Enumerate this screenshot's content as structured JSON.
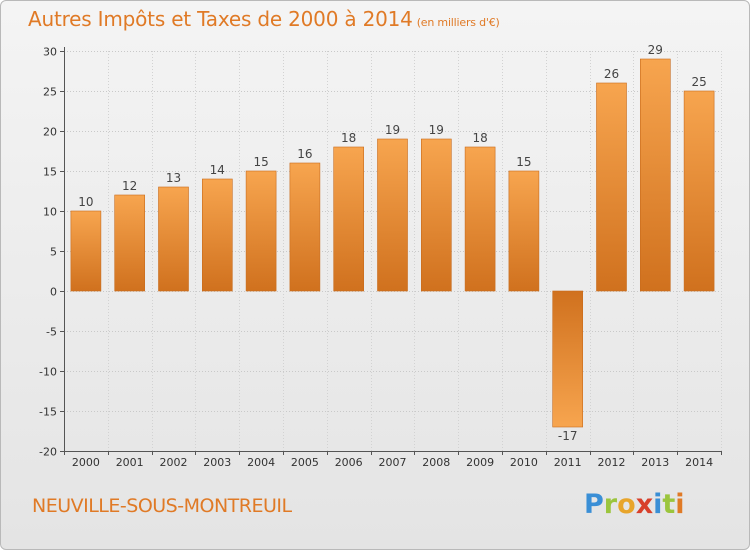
{
  "header": {
    "title": "Autres Impôts et Taxes de 2000 à 2014",
    "unit": "(en milliers d'€)"
  },
  "footer": {
    "town": "NEUVILLE-SOUS-MONTREUIL",
    "logo": [
      "P",
      "r",
      "o",
      "x",
      "i",
      "t",
      "i"
    ]
  },
  "colors": {
    "bar_light": "#f7a24d",
    "bar_dark": "#d27420",
    "title": "#e07a26"
  },
  "chart_data": {
    "type": "bar",
    "title": "Autres Impôts et Taxes de 2000 à 2014",
    "ylabel": "",
    "xlabel": "",
    "categories": [
      "2000",
      "2001",
      "2002",
      "2003",
      "2004",
      "2005",
      "2006",
      "2007",
      "2008",
      "2009",
      "2010",
      "2011",
      "2012",
      "2013",
      "2014"
    ],
    "values": [
      10,
      12,
      13,
      14,
      15,
      16,
      18,
      19,
      19,
      18,
      15,
      -17,
      26,
      29,
      25
    ],
    "ylim": [
      -20,
      30
    ],
    "yticks": [
      30,
      25,
      20,
      15,
      10,
      5,
      0,
      -5,
      -10,
      -15,
      -20
    ],
    "grid": true
  }
}
